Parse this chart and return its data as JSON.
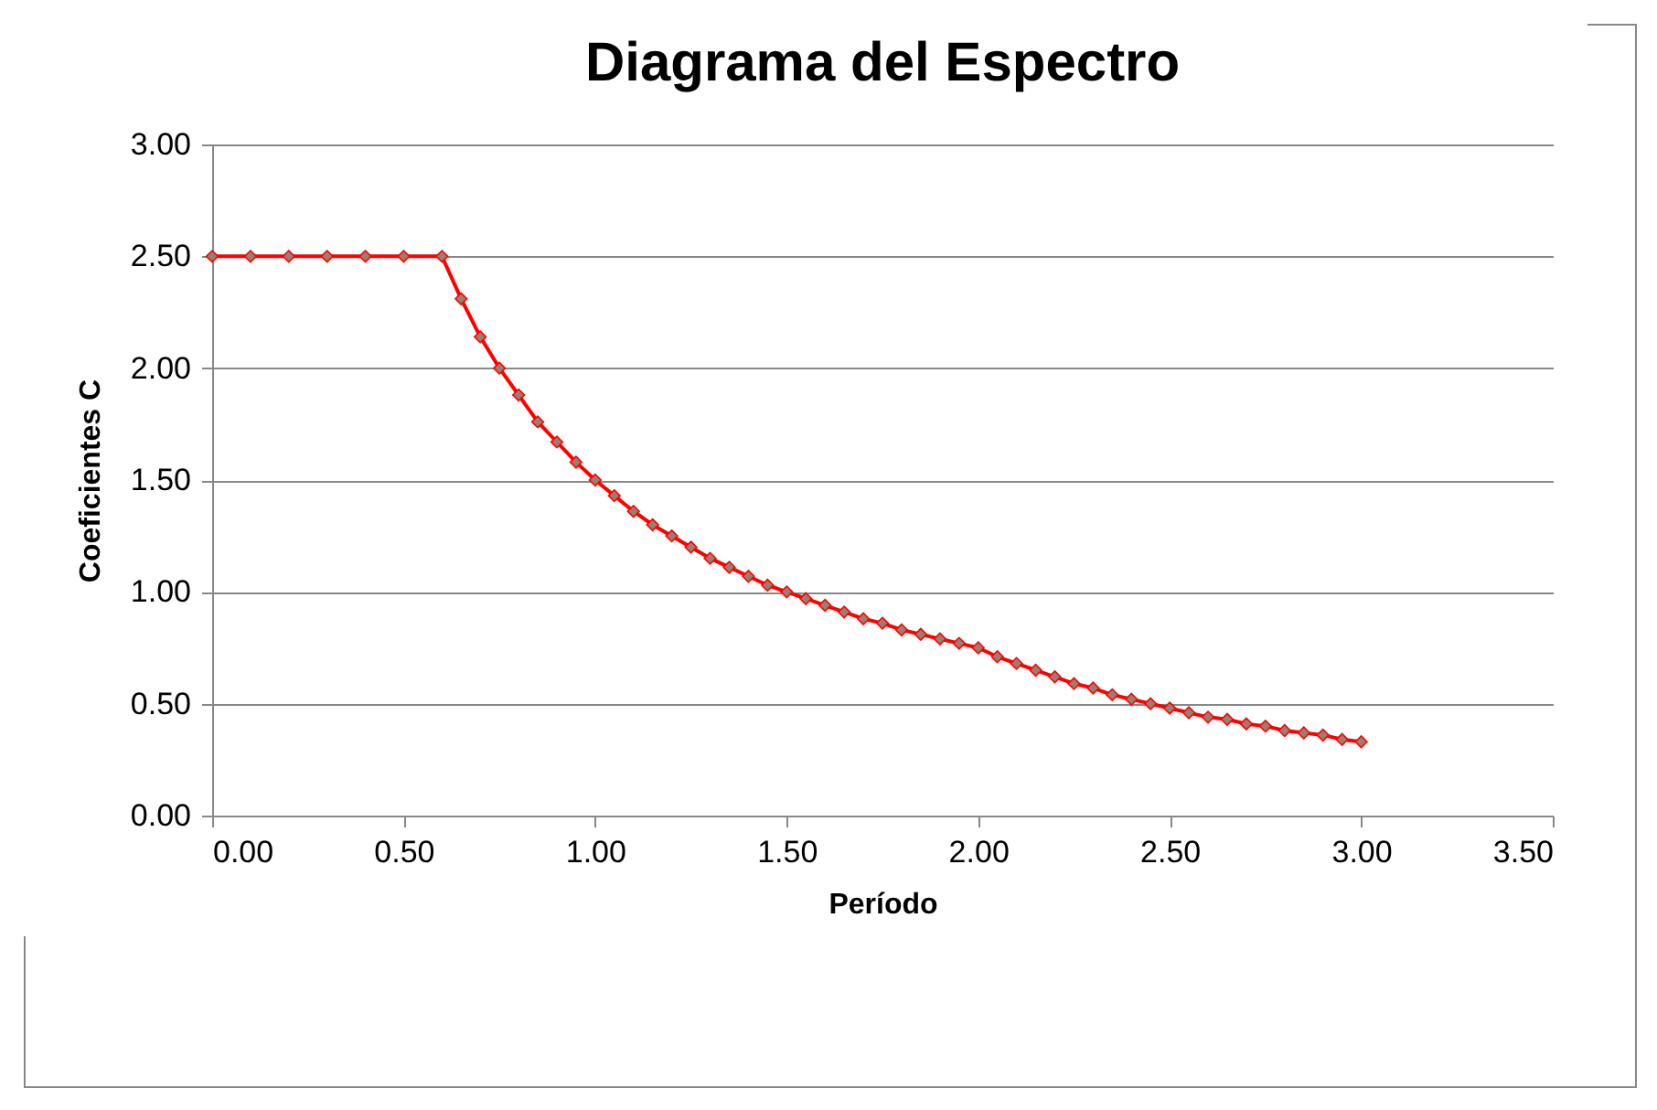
{
  "chart_data": {
    "type": "line",
    "title": "Diagrama del Espectro",
    "xlabel": "Período",
    "ylabel": "Coeficientes C",
    "x": [
      0,
      0.1,
      0.2,
      0.3,
      0.4,
      0.5,
      0.6,
      0.65,
      0.7,
      0.75,
      0.8,
      0.85,
      0.9,
      0.95,
      1.0,
      1.05,
      1.1,
      1.15,
      1.2,
      1.25,
      1.3,
      1.35,
      1.4,
      1.45,
      1.5,
      1.55,
      1.6,
      1.65,
      1.7,
      1.75,
      1.8,
      1.85,
      1.9,
      1.95,
      2.0,
      2.05,
      2.1,
      2.15,
      2.2,
      2.25,
      2.3,
      2.35,
      2.4,
      2.45,
      2.5,
      2.55,
      2.6,
      2.65,
      2.7,
      2.75,
      2.8,
      2.85,
      2.9,
      2.95,
      3.0
    ],
    "series": [
      {
        "color": "#ff0000",
        "values": [
          2.5,
          2.5,
          2.5,
          2.5,
          2.5,
          2.5,
          2.5,
          2.31,
          2.14,
          2.0,
          1.88,
          1.76,
          1.67,
          1.58,
          1.5,
          1.43,
          1.36,
          1.3,
          1.25,
          1.2,
          1.15,
          1.11,
          1.07,
          1.03,
          1.0,
          0.97,
          0.94,
          0.91,
          0.88,
          0.86,
          0.83,
          0.81,
          0.79,
          0.77,
          0.75,
          0.71,
          0.68,
          0.65,
          0.62,
          0.59,
          0.57,
          0.54,
          0.52,
          0.5,
          0.48,
          0.46,
          0.44,
          0.43,
          0.41,
          0.4,
          0.38,
          0.37,
          0.36,
          0.34,
          0.33
        ]
      }
    ],
    "xlim": [
      0,
      3.5
    ],
    "ylim": [
      0,
      3
    ],
    "xticks": [
      {
        "value": 0,
        "label": "0.00"
      },
      {
        "value": 0.5,
        "label": "0.50"
      },
      {
        "value": 1,
        "label": "1.00"
      },
      {
        "value": 1.5,
        "label": "1.50"
      },
      {
        "value": 2,
        "label": "2.00"
      },
      {
        "value": 2.5,
        "label": "2.50"
      },
      {
        "value": 3,
        "label": "3.00"
      },
      {
        "value": 3.5,
        "label": "3.50"
      }
    ],
    "yticks": [
      {
        "value": 0,
        "label": "0.00"
      },
      {
        "value": 0.5,
        "label": "0.50"
      },
      {
        "value": 1,
        "label": "1.00"
      },
      {
        "value": 1.5,
        "label": "1.50"
      },
      {
        "value": 2,
        "label": "2.00"
      },
      {
        "value": 2.5,
        "label": "2.50"
      },
      {
        "value": 3,
        "label": "3.00"
      }
    ],
    "grid": "y",
    "marker": "diamond",
    "line_style": "solid",
    "legend": false
  }
}
